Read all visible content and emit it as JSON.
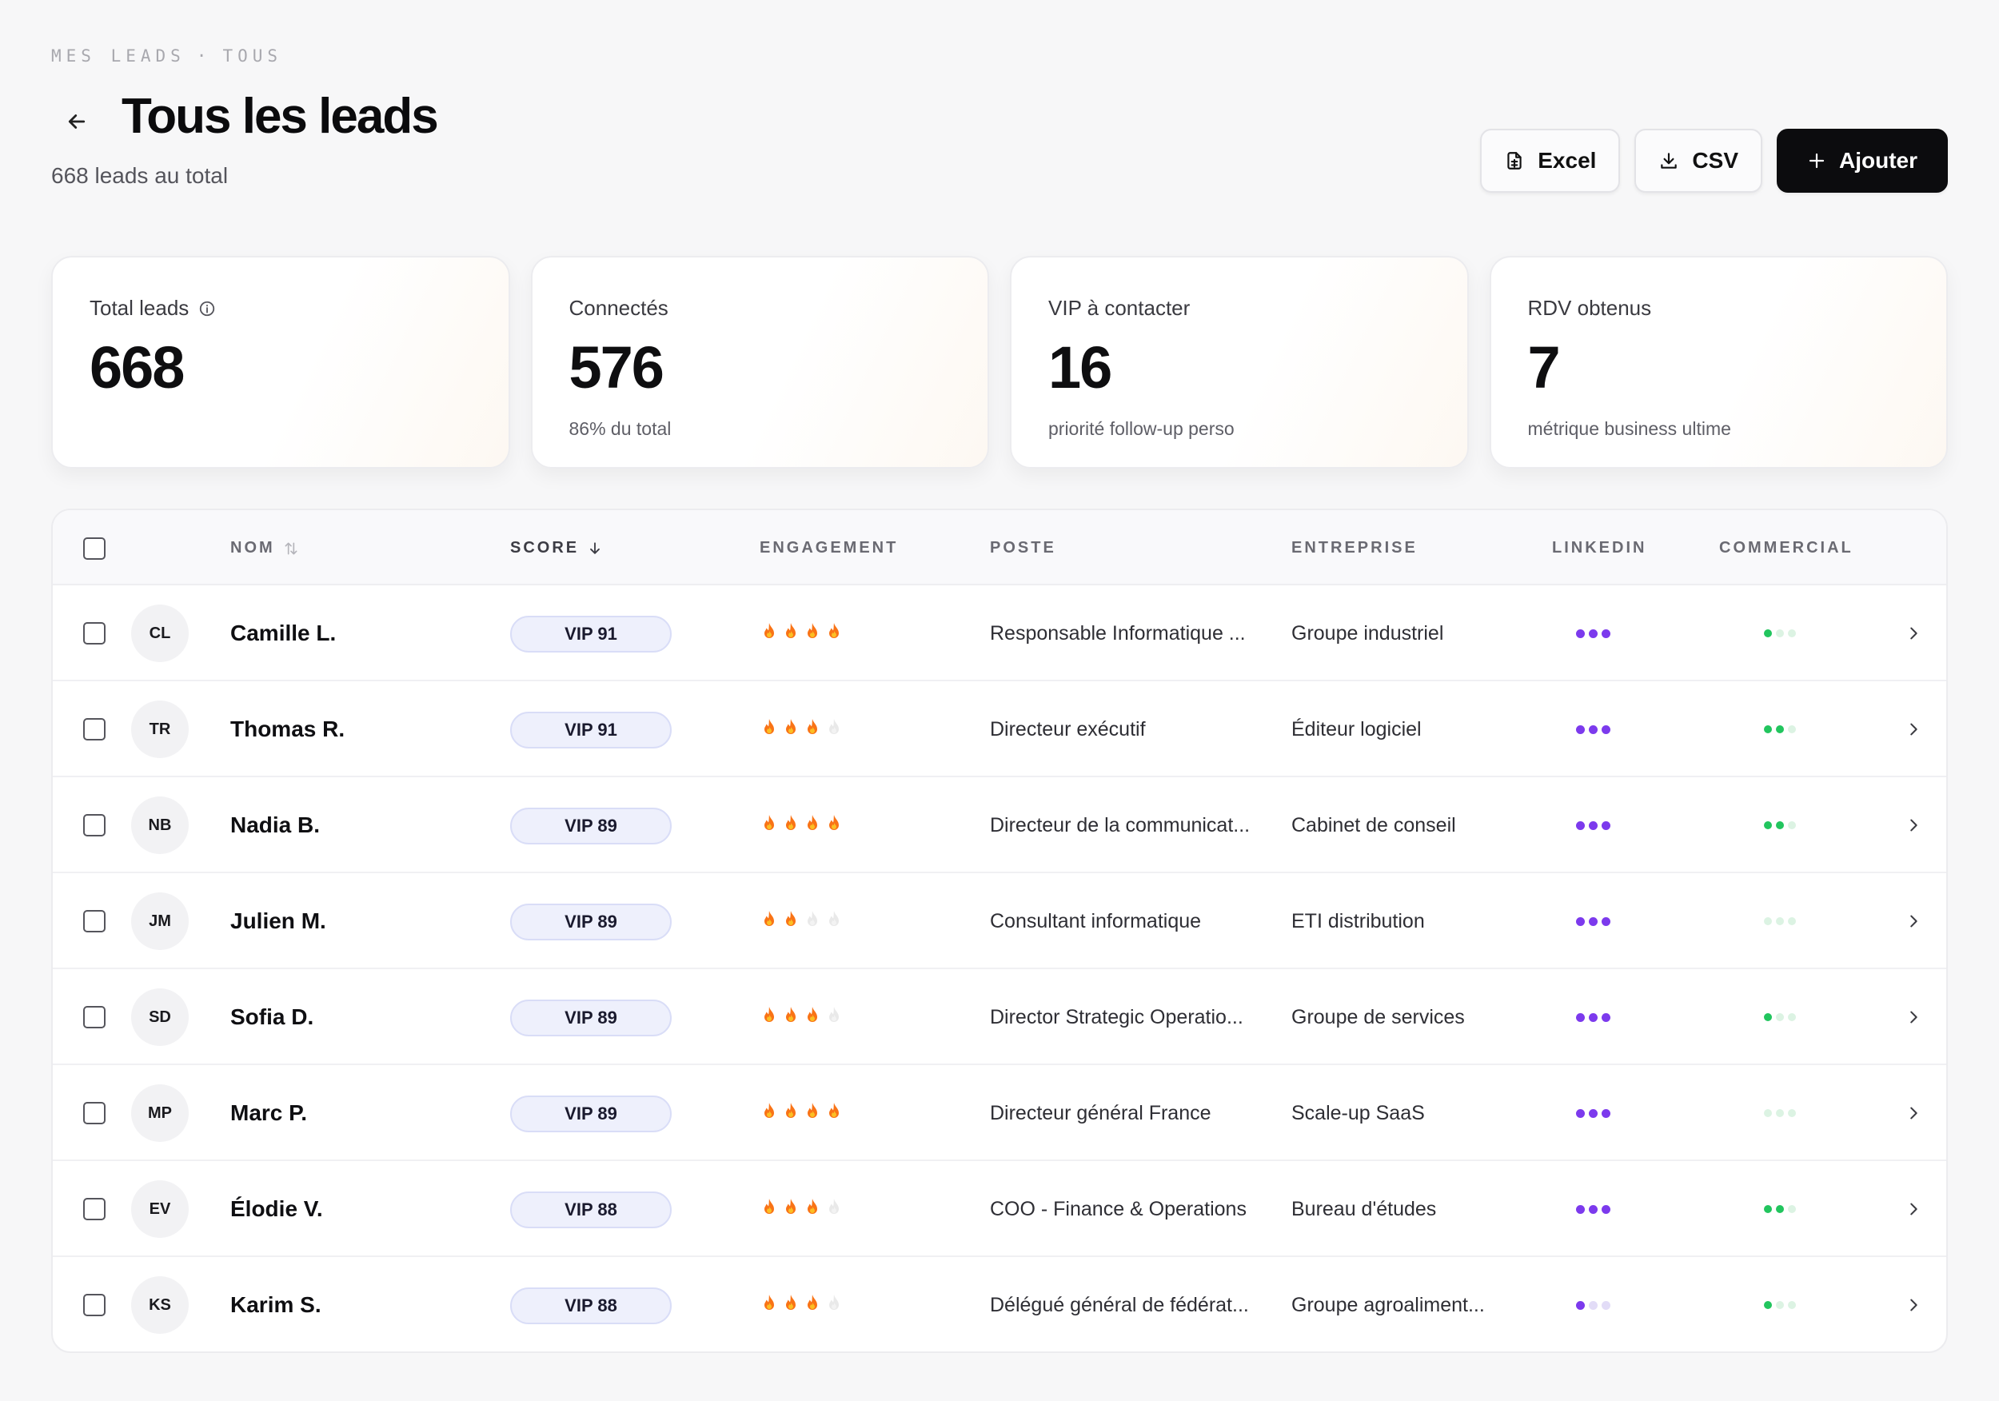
{
  "breadcrumb": {
    "part1": "MES LEADS",
    "sep": "·",
    "part2": "TOUS"
  },
  "header": {
    "title": "Tous les leads",
    "subtitle": "668 leads au total"
  },
  "actions": {
    "excel": "Excel",
    "csv": "CSV",
    "add": "Ajouter"
  },
  "stats": [
    {
      "label": "Total leads",
      "value": "668",
      "note": ""
    },
    {
      "label": "Connectés",
      "value": "576",
      "note": "86% du total"
    },
    {
      "label": "VIP à contacter",
      "value": "16",
      "note": "priorité follow-up perso"
    },
    {
      "label": "RDV obtenus",
      "value": "7",
      "note": "métrique business ultime"
    }
  ],
  "table": {
    "columns": {
      "nom": "NOM",
      "score": "SCORE",
      "engagement": "ENGAGEMENT",
      "poste": "POSTE",
      "entreprise": "ENTREPRISE",
      "linkedin": "LINKEDIN",
      "commercial": "COMMERCIAL"
    },
    "rows": [
      {
        "initials": "CL",
        "name": "Camille L.",
        "score": "VIP 91",
        "engagement": 4,
        "poste": "Responsable Informatique ...",
        "entreprise": "Groupe industriel",
        "linkedin": 3,
        "commercial": 1
      },
      {
        "initials": "TR",
        "name": "Thomas R.",
        "score": "VIP 91",
        "engagement": 3,
        "poste": "Directeur exécutif",
        "entreprise": "Éditeur logiciel",
        "linkedin": 3,
        "commercial": 2
      },
      {
        "initials": "NB",
        "name": "Nadia B.",
        "score": "VIP 89",
        "engagement": 4,
        "poste": "Directeur de la communicat...",
        "entreprise": "Cabinet de conseil",
        "linkedin": 3,
        "commercial": 2
      },
      {
        "initials": "JM",
        "name": "Julien M.",
        "score": "VIP 89",
        "engagement": 2,
        "poste": "Consultant informatique",
        "entreprise": "ETI distribution",
        "linkedin": 3,
        "commercial": 0
      },
      {
        "initials": "SD",
        "name": "Sofia D.",
        "score": "VIP 89",
        "engagement": 3,
        "poste": "Director Strategic Operatio...",
        "entreprise": "Groupe de services",
        "linkedin": 3,
        "commercial": 1
      },
      {
        "initials": "MP",
        "name": "Marc P.",
        "score": "VIP 89",
        "engagement": 4,
        "poste": "Directeur général France",
        "entreprise": "Scale-up SaaS",
        "linkedin": 3,
        "commercial": 0
      },
      {
        "initials": "EV",
        "name": "Élodie V.",
        "score": "VIP 88",
        "engagement": 3,
        "poste": "COO - Finance & Operations",
        "entreprise": "Bureau d'études",
        "linkedin": 3,
        "commercial": 2
      },
      {
        "initials": "KS",
        "name": "Karim S.",
        "score": "VIP 88",
        "engagement": 3,
        "poste": "Délégué général de fédérat...",
        "entreprise": "Groupe agroaliment...",
        "linkedin": 1,
        "commercial": 1
      }
    ]
  },
  "colors": {
    "linkedin_on": "#7c3aed",
    "linkedin_off": "#e2dcf7",
    "commercial_on": "#22c55e",
    "commercial_off": "#dcf3e3",
    "flame": "#f97316"
  },
  "icons": {
    "back": "arrow-left-icon",
    "info": "info-icon",
    "excel": "spreadsheet-icon",
    "csv": "download-icon",
    "add": "plus-icon",
    "sort": "sort-icon",
    "sort_desc": "arrow-down-icon",
    "flame": "flame-icon",
    "row_open": "chevron-right-icon"
  }
}
